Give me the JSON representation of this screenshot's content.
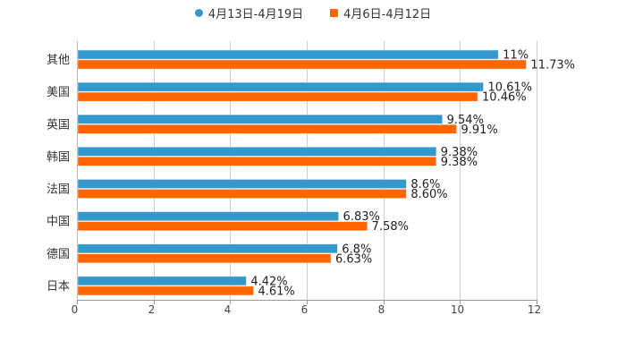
{
  "legend": [
    {
      "label": "4月13日-4月19日",
      "color": "#3399CC",
      "marker": "circle"
    },
    {
      "label": "4月6日-4月12日",
      "color": "#FF6600",
      "marker": "square"
    }
  ],
  "chart_data": {
    "type": "bar",
    "orientation": "horizontal",
    "title": "",
    "xlabel": "",
    "ylabel": "",
    "categories": [
      "其他",
      "美国",
      "英国",
      "韩国",
      "法国",
      "中国",
      "德国",
      "日本"
    ],
    "series": [
      {
        "name": "4月13日-4月19日",
        "color": "#3399CC",
        "values": [
          11,
          10.61,
          9.54,
          9.38,
          8.6,
          6.83,
          6.8,
          4.42
        ],
        "labels": [
          "11%",
          "10.61%",
          "9.54%",
          "9.38%",
          "8.6%",
          "6.83%",
          "6.8%",
          "4.42%"
        ]
      },
      {
        "name": "4月6日-4月12日",
        "color": "#FF6600",
        "values": [
          11.73,
          10.46,
          9.91,
          9.38,
          8.6,
          7.58,
          6.63,
          4.61
        ],
        "labels": [
          "11.73%",
          "10.46%",
          "9.91%",
          "9.38%",
          "8.60%",
          "7.58%",
          "6.63%",
          "4.61%"
        ]
      }
    ],
    "xlim": [
      0,
      12
    ],
    "xticks": [
      "0",
      "2",
      "4",
      "6",
      "8",
      "10",
      "12"
    ],
    "grid": true,
    "legend_position": "top"
  }
}
